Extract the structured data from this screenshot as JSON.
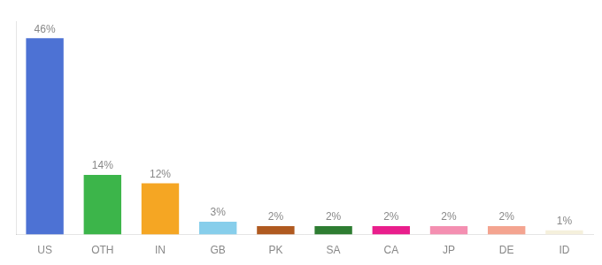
{
  "chart_data": {
    "type": "bar",
    "categories": [
      "US",
      "OTH",
      "IN",
      "GB",
      "PK",
      "SA",
      "CA",
      "JP",
      "DE",
      "ID"
    ],
    "values": [
      46,
      14,
      12,
      3,
      2,
      2,
      2,
      2,
      2,
      1
    ],
    "value_labels": [
      "46%",
      "14%",
      "12%",
      "3%",
      "2%",
      "2%",
      "2%",
      "2%",
      "2%",
      "1%"
    ],
    "colors": [
      "#4d72d4",
      "#3cb54a",
      "#f5a623",
      "#87ceeb",
      "#b05a20",
      "#2e7d32",
      "#e91e8c",
      "#f48fb1",
      "#f4a490",
      "#f5f0dc"
    ],
    "ylim": [
      0,
      50
    ],
    "grid": false,
    "data_labels": true,
    "tick_labels": "x"
  }
}
